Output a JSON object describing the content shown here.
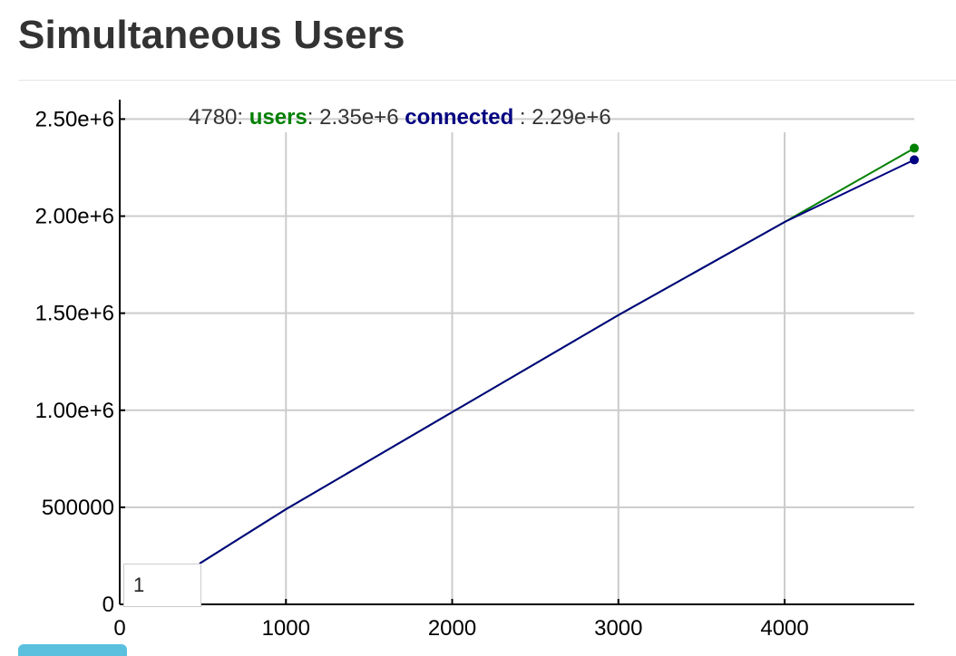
{
  "page": {
    "title": "Simultaneous Users",
    "roll_period_value": "1"
  },
  "legend": {
    "x_value": "4780",
    "separator": ":",
    "series": [
      {
        "name": "users",
        "value": "2.35e+6",
        "color": "#008000"
      },
      {
        "name": "connected",
        "value": "2.29e+6",
        "color": "#000080"
      }
    ]
  },
  "chart_data": {
    "type": "line",
    "title": "Simultaneous Users",
    "xlabel": "",
    "ylabel": "",
    "xlim": [
      0,
      4780
    ],
    "ylim": [
      0,
      2600000
    ],
    "grid": true,
    "legend_placement": "top",
    "x_ticks": [
      0,
      1000,
      2000,
      3000,
      4000
    ],
    "x_tick_labels": [
      "0",
      "1000",
      "2000",
      "3000",
      "4000"
    ],
    "y_ticks": [
      0,
      500000,
      1000000,
      1500000,
      2000000,
      2500000
    ],
    "y_tick_labels": [
      "0",
      "500000",
      "1.00e+6",
      "1.50e+6",
      "2.00e+6",
      "2.50e+6"
    ],
    "series": [
      {
        "name": "users",
        "color": "#008000",
        "x": [
          480,
          1000,
          2000,
          3000,
          4000,
          4780
        ],
        "values": [
          210000,
          490000,
          990000,
          1490000,
          1970000,
          2350000
        ]
      },
      {
        "name": "connected",
        "color": "#000080",
        "x": [
          480,
          1000,
          2000,
          3000,
          4000,
          4780
        ],
        "values": [
          210000,
          490000,
          990000,
          1490000,
          1970000,
          2290000
        ]
      }
    ]
  }
}
